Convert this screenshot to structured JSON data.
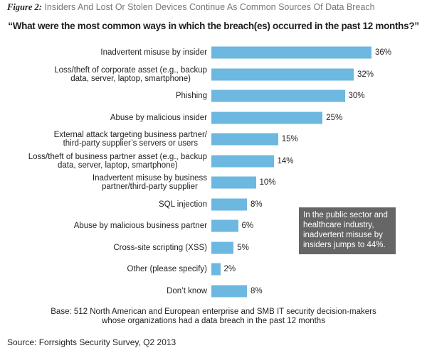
{
  "figure_label": "Figure 2:",
  "chart_data": {
    "type": "bar",
    "orientation": "horizontal",
    "title": "Insiders And Lost Or Stolen Devices Continue As Common Sources Of Data Breach",
    "subtitle": "“What were the most common ways in which the breach(es) occurred in the past 12 months?”",
    "categories": [
      "Inadvertent misuse by insider",
      "Loss/theft of corporate asset (e.g., backup\ndata, server, laptop, smartphone)",
      "Phishing",
      "Abuse by malicious insider",
      "External attack targeting business partner/\nthird-party supplier’s servers or users",
      "Loss/theft of business partner asset (e.g., backup\ndata, server, laptop, smartphone)",
      "Inadvertent misuse by business\npartner/third-party supplier",
      "SQL injection",
      "Abuse by malicious business partner",
      "Cross-site scripting (XSS)",
      "Other (please specify)",
      "Don’t know"
    ],
    "values": [
      36,
      32,
      30,
      25,
      15,
      14,
      10,
      8,
      6,
      5,
      2,
      8
    ],
    "data_labels": [
      "36%",
      "32%",
      "30%",
      "25%",
      "15%",
      "14%",
      "10%",
      "8%",
      "6%",
      "5%",
      "2%",
      "8%"
    ],
    "unit": "%",
    "bar_color": "#6cb8e0",
    "annotation": "In the public sector and healthcare industry, inadvertent misuse by insiders jumps to 44%.",
    "base_note": "Base: 512 North American and European enterprise and SMB IT security decision-makers\nwhose organizations had a data breach in the past 12 months",
    "source": "Source: Forrsights Security Survey, Q2 2013"
  }
}
